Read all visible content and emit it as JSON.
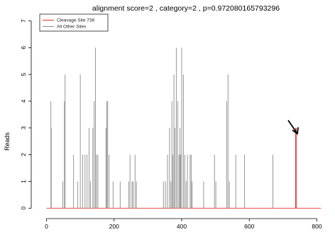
{
  "chart_data": {
    "type": "bar",
    "title": "alignment score=2 , category=2 , p=0.972080165793296",
    "xlabel": "",
    "ylabel": "Reads",
    "xlim": [
      -20,
      820
    ],
    "ylim": [
      -0.15,
      7.2
    ],
    "x_ticks": [
      0,
      200,
      400,
      600,
      800
    ],
    "y_ticks": [
      0,
      1,
      2,
      3,
      4,
      5,
      6,
      7
    ],
    "grid": false,
    "legend_position": "top-left",
    "annotation": "arrow pointing at the cleavage site peak",
    "series": [
      {
        "name": "Cleavage Site 738",
        "color": "#e8312a",
        "points": [
          [
            738,
            3
          ]
        ]
      },
      {
        "name": "All Other Sites",
        "color": "#8a8a8a",
        "points": [
          [
            13,
            4
          ],
          [
            14,
            3
          ],
          [
            48,
            1
          ],
          [
            53,
            4
          ],
          [
            55,
            5
          ],
          [
            80,
            2
          ],
          [
            92,
            1
          ],
          [
            100,
            5
          ],
          [
            107,
            2
          ],
          [
            114,
            2
          ],
          [
            120,
            2
          ],
          [
            126,
            3
          ],
          [
            130,
            1
          ],
          [
            137,
            3
          ],
          [
            141,
            4
          ],
          [
            145,
            6
          ],
          [
            148,
            2
          ],
          [
            152,
            2
          ],
          [
            176,
            3
          ],
          [
            178,
            4
          ],
          [
            181,
            4
          ],
          [
            185,
            2
          ],
          [
            197,
            1
          ],
          [
            218,
            1
          ],
          [
            243,
            1
          ],
          [
            247,
            2
          ],
          [
            253,
            1
          ],
          [
            256,
            1
          ],
          [
            262,
            2
          ],
          [
            266,
            1
          ],
          [
            346,
            1
          ],
          [
            352,
            1
          ],
          [
            358,
            2
          ],
          [
            364,
            3
          ],
          [
            368,
            1
          ],
          [
            371,
            4
          ],
          [
            374,
            2
          ],
          [
            377,
            5
          ],
          [
            380,
            3
          ],
          [
            384,
            6
          ],
          [
            388,
            4
          ],
          [
            392,
            2
          ],
          [
            395,
            3
          ],
          [
            397,
            2
          ],
          [
            400,
            6
          ],
          [
            405,
            5
          ],
          [
            409,
            2
          ],
          [
            413,
            1
          ],
          [
            417,
            2
          ],
          [
            425,
            2
          ],
          [
            428,
            2
          ],
          [
            431,
            1
          ],
          [
            465,
            1
          ],
          [
            497,
            2
          ],
          [
            501,
            1
          ],
          [
            533,
            4
          ],
          [
            537,
            5
          ],
          [
            541,
            1
          ],
          [
            560,
            2
          ],
          [
            586,
            2
          ],
          [
            670,
            2
          ]
        ]
      }
    ]
  }
}
